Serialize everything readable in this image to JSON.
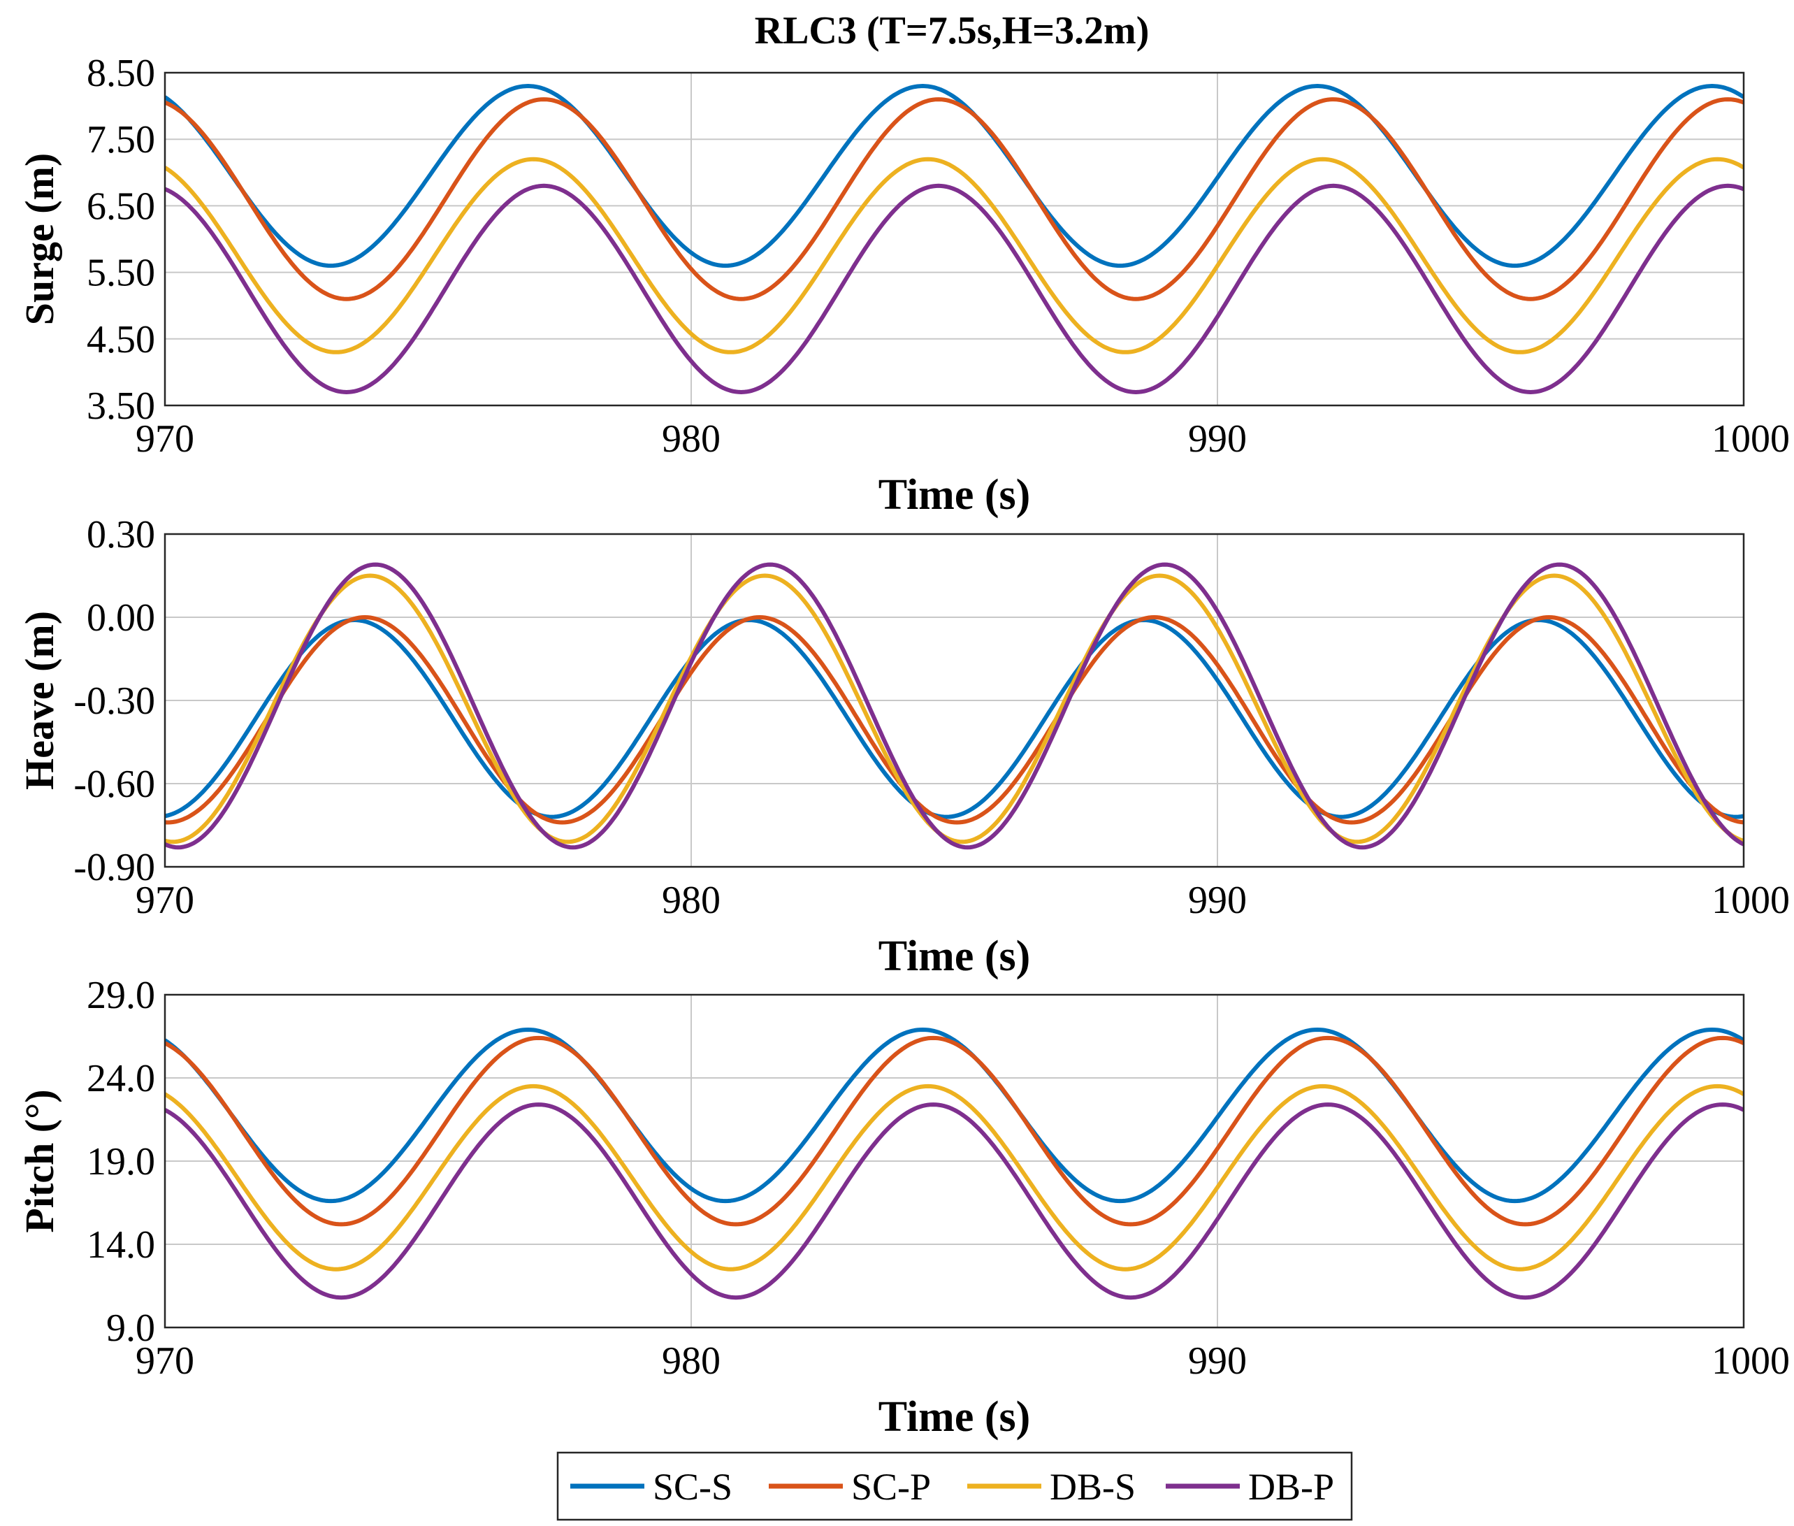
{
  "title": "RLC3 (T=7.5s,H=3.2m)",
  "colors": {
    "SC-S": "#0072BD",
    "SC-P": "#D95319",
    "DB-S": "#EDB120",
    "DB-P": "#7E2F8E"
  },
  "legend": [
    "SC-S",
    "SC-P",
    "DB-S",
    "DB-P"
  ],
  "chart_data": [
    {
      "type": "line",
      "ylabel": "Surge (m)",
      "xlabel": "Time (s)",
      "xlim": [
        970,
        1000
      ],
      "ylim": [
        3.5,
        8.5
      ],
      "xticks": [
        "970",
        "980",
        "990",
        "1000"
      ],
      "yticks": [
        "8.50",
        "7.50",
        "6.50",
        "5.50",
        "4.50",
        "3.50"
      ],
      "period": 7.5,
      "series": [
        {
          "name": "SC-S",
          "mean": 6.95,
          "amp": 1.35,
          "peak_time": 976.9
        },
        {
          "name": "SC-P",
          "mean": 6.6,
          "amp": 1.5,
          "peak_time": 977.2
        },
        {
          "name": "DB-S",
          "mean": 5.75,
          "amp": 1.45,
          "peak_time": 977.0
        },
        {
          "name": "DB-P",
          "mean": 5.25,
          "amp": 1.55,
          "peak_time": 977.2
        }
      ]
    },
    {
      "type": "line",
      "ylabel": "Heave (m)",
      "xlabel": "Time (s)",
      "xlim": [
        970,
        1000
      ],
      "ylim": [
        -0.9,
        0.3
      ],
      "xticks": [
        "970",
        "980",
        "990",
        "1000"
      ],
      "yticks": [
        "0.30",
        "0.00",
        "-0.30",
        "-0.60",
        "-0.90"
      ],
      "period": 7.5,
      "series": [
        {
          "name": "SC-S",
          "mean": -0.365,
          "amp": 0.355,
          "peak_time": 973.6
        },
        {
          "name": "SC-P",
          "mean": -0.37,
          "amp": 0.37,
          "peak_time": 973.8
        },
        {
          "name": "DB-S",
          "mean": -0.33,
          "amp": 0.48,
          "peak_time": 973.9
        },
        {
          "name": "DB-P",
          "mean": -0.32,
          "amp": 0.51,
          "peak_time": 974.0
        }
      ]
    },
    {
      "type": "line",
      "ylabel": "Pitch (°)",
      "xlabel": "Time (s)",
      "xlim": [
        970,
        1000
      ],
      "ylim": [
        9.0,
        29.0
      ],
      "xticks": [
        "970",
        "980",
        "990",
        "1000"
      ],
      "yticks": [
        "29.0",
        "24.0",
        "19.0",
        "14.0",
        "9.0"
      ],
      "period": 7.5,
      "series": [
        {
          "name": "SC-S",
          "mean": 21.75,
          "amp": 5.15,
          "peak_time": 976.9
        },
        {
          "name": "SC-P",
          "mean": 20.8,
          "amp": 5.6,
          "peak_time": 977.1
        },
        {
          "name": "DB-S",
          "mean": 18.0,
          "amp": 5.5,
          "peak_time": 977.0
        },
        {
          "name": "DB-P",
          "mean": 16.6,
          "amp": 5.8,
          "peak_time": 977.1
        }
      ]
    }
  ]
}
